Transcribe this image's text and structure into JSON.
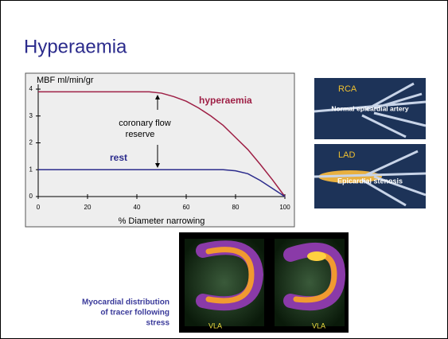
{
  "title": "Hyperaemia",
  "chart_data": {
    "type": "line",
    "ylabel": "MBF ml/min/gr",
    "xlabel": "% Diameter narrowing",
    "xlim": [
      0,
      100
    ],
    "ylim": [
      0,
      4
    ],
    "xticks": [
      0,
      20,
      40,
      60,
      80,
      100
    ],
    "yticks": [
      0,
      1,
      2,
      3,
      4
    ],
    "x": [
      0,
      10,
      20,
      30,
      40,
      45,
      50,
      55,
      60,
      65,
      70,
      75,
      80,
      85,
      90,
      95,
      100
    ],
    "series": [
      {
        "name": "hyperaemia",
        "color": "#9e1f45",
        "values": [
          3.9,
          3.9,
          3.9,
          3.9,
          3.9,
          3.9,
          3.85,
          3.72,
          3.55,
          3.3,
          3.0,
          2.65,
          2.2,
          1.75,
          1.2,
          0.62,
          0
        ]
      },
      {
        "name": "rest",
        "color": "#2b2b8c",
        "values": [
          1.0,
          1.0,
          1.0,
          1.0,
          1.0,
          1.0,
          1.0,
          1.0,
          1.0,
          1.0,
          1.0,
          1.0,
          0.96,
          0.85,
          0.6,
          0.3,
          0
        ]
      }
    ],
    "annotation": [
      "coronary flow",
      "reserve"
    ]
  },
  "angiograms": [
    {
      "label": "RCA",
      "caption": "Normal epicardial artery"
    },
    {
      "label": "LAD",
      "caption": "Epicardial stenosis"
    }
  ],
  "scans": {
    "labels": [
      "VLA",
      "VLA"
    ]
  },
  "caption": [
    "Myocardial distribution",
    "of tracer following",
    "stress"
  ]
}
